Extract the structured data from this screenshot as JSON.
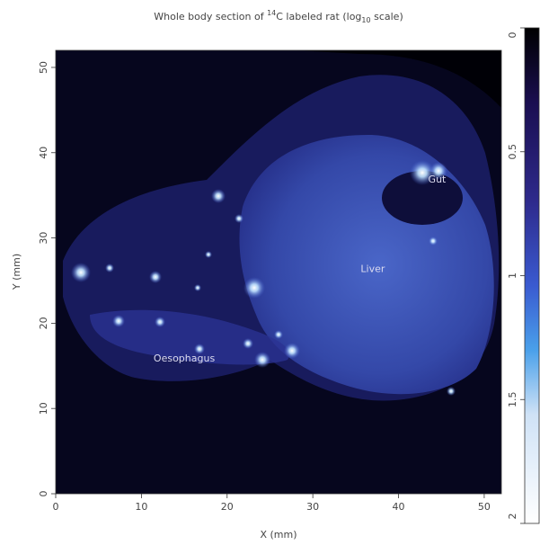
{
  "chart_data": {
    "type": "heatmap",
    "title": "Whole body section of 14C labeled rat (log10 scale)",
    "title_parts": {
      "prefix": "Whole body section of ",
      "superscript": "14",
      "middle": "C labeled rat  (log",
      "subscript": "10",
      "suffix": " scale)"
    },
    "xlabel": "X (mm)",
    "ylabel": "Y (mm)",
    "xlim": [
      0,
      52
    ],
    "ylim": [
      0,
      52
    ],
    "x_ticks": [
      0,
      10,
      20,
      30,
      40,
      50
    ],
    "y_ticks": [
      0,
      10,
      20,
      30,
      40,
      50
    ],
    "x_tick_labels": [
      "0",
      "10",
      "20",
      "30",
      "40",
      "50"
    ],
    "y_tick_labels": [
      "0",
      "10",
      "20",
      "30",
      "40",
      "50"
    ],
    "colorbar": {
      "ticks": [
        0,
        0.5,
        1,
        1.5,
        2
      ],
      "tick_labels": [
        "0",
        "0.5",
        "1",
        "1.5",
        "2"
      ],
      "colors_top_to_bottom": [
        "#000000",
        "#2a1a6e",
        "#3a50c8",
        "#50a8f0",
        "#dce8f8",
        "#ffffff"
      ]
    },
    "annotations": [
      {
        "text": "Gut",
        "x": 44.5,
        "y": 36.5
      },
      {
        "text": "Liver",
        "x": 37,
        "y": 26
      },
      {
        "text": "Oesophagus",
        "x": 15,
        "y": 15.5
      }
    ],
    "background_color": "#05051e",
    "tissue_color": "#3448a8",
    "hotspot_color": "#e8f4ff"
  }
}
